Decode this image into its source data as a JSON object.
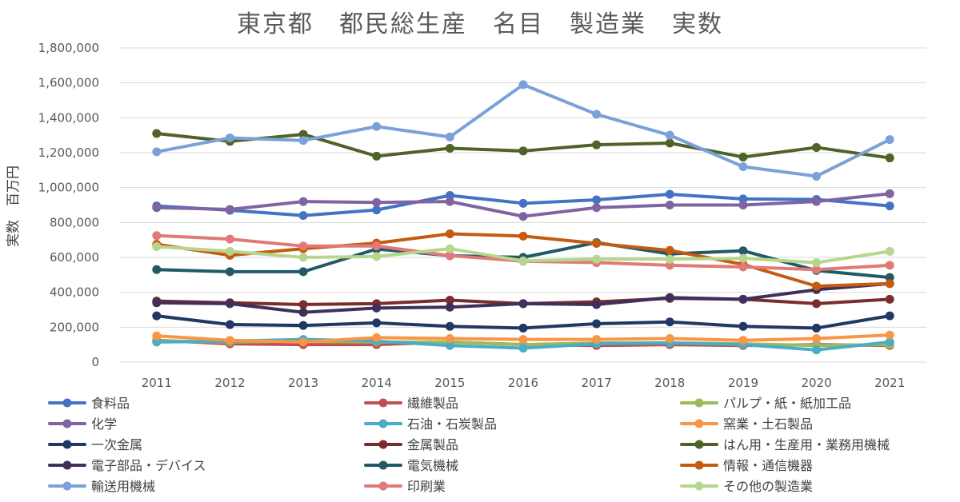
{
  "chart_data": {
    "type": "line",
    "title": "東京都　都民総生産　名目　製造業　実数",
    "ylabel": "実数　百万円",
    "xlabel": "",
    "ylim": [
      0,
      1800000
    ],
    "ytick_step": 200000,
    "y_tick_labels": [
      "0",
      "200,000",
      "400,000",
      "600,000",
      "800,000",
      "1,000,000",
      "1,200,000",
      "1,400,000",
      "1,600,000",
      "1,800,000"
    ],
    "categories": [
      "2011",
      "2012",
      "2013",
      "2014",
      "2015",
      "2016",
      "2017",
      "2018",
      "2019",
      "2020",
      "2021"
    ],
    "grid": true,
    "legend_position": "bottom",
    "series": [
      {
        "name": "食料品",
        "color": "#4472c4",
        "values": [
          895000,
          870000,
          840000,
          872000,
          955000,
          910000,
          930000,
          962000,
          935000,
          932000,
          895000
        ]
      },
      {
        "name": "繊維製品",
        "color": "#c0504d",
        "values": [
          125000,
          105000,
          100000,
          100000,
          115000,
          100000,
          95000,
          100000,
          95000,
          100000,
          95000
        ]
      },
      {
        "name": "パルプ・紙・紙加工品",
        "color": "#9bbb59",
        "values": [
          120000,
          115000,
          120000,
          115000,
          115000,
          100000,
          110000,
          110000,
          105000,
          95000,
          100000
        ]
      },
      {
        "name": "化学",
        "color": "#8064a2",
        "values": [
          885000,
          875000,
          920000,
          915000,
          920000,
          835000,
          885000,
          900000,
          900000,
          920000,
          965000
        ]
      },
      {
        "name": "石油・石炭製品",
        "color": "#4bacc6",
        "values": [
          115000,
          120000,
          130000,
          120000,
          95000,
          80000,
          105000,
          110000,
          100000,
          70000,
          115000
        ]
      },
      {
        "name": "窯業・土石製品",
        "color": "#f79646",
        "values": [
          150000,
          125000,
          115000,
          140000,
          135000,
          130000,
          130000,
          135000,
          125000,
          135000,
          155000
        ]
      },
      {
        "name": "一次金属",
        "color": "#1f3864",
        "values": [
          265000,
          215000,
          210000,
          225000,
          205000,
          195000,
          220000,
          230000,
          205000,
          195000,
          265000
        ]
      },
      {
        "name": "金属製品",
        "color": "#7b2c2c",
        "values": [
          350000,
          340000,
          330000,
          335000,
          355000,
          335000,
          345000,
          365000,
          360000,
          335000,
          360000
        ]
      },
      {
        "name": "はん用・生産用・業務用機械",
        "color": "#4f6228",
        "values": [
          1310000,
          1265000,
          1305000,
          1180000,
          1225000,
          1210000,
          1245000,
          1255000,
          1175000,
          1230000,
          1170000
        ]
      },
      {
        "name": "電子部品・デバイス",
        "color": "#3f2f5a",
        "values": [
          340000,
          335000,
          285000,
          310000,
          315000,
          335000,
          330000,
          370000,
          360000,
          415000,
          450000
        ]
      },
      {
        "name": "電気機械",
        "color": "#215967",
        "values": [
          530000,
          518000,
          518000,
          648000,
          610000,
          600000,
          685000,
          620000,
          638000,
          525000,
          485000
        ]
      },
      {
        "name": "情報・通信機器",
        "color": "#c55a11",
        "values": [
          675000,
          612000,
          650000,
          682000,
          735000,
          722000,
          680000,
          640000,
          560000,
          435000,
          450000
        ]
      },
      {
        "name": "輸送用機械",
        "color": "#7aa1d8",
        "values": [
          1205000,
          1285000,
          1270000,
          1350000,
          1290000,
          1590000,
          1420000,
          1300000,
          1120000,
          1065000,
          1275000
        ]
      },
      {
        "name": "印刷業",
        "color": "#e07a77",
        "values": [
          725000,
          705000,
          665000,
          665000,
          610000,
          578000,
          570000,
          555000,
          545000,
          530000,
          555000
        ]
      },
      {
        "name": "その他の製造業",
        "color": "#b5d68c",
        "values": [
          662000,
          635000,
          600000,
          605000,
          650000,
          580000,
          590000,
          590000,
          595000,
          570000,
          635000
        ]
      }
    ]
  }
}
